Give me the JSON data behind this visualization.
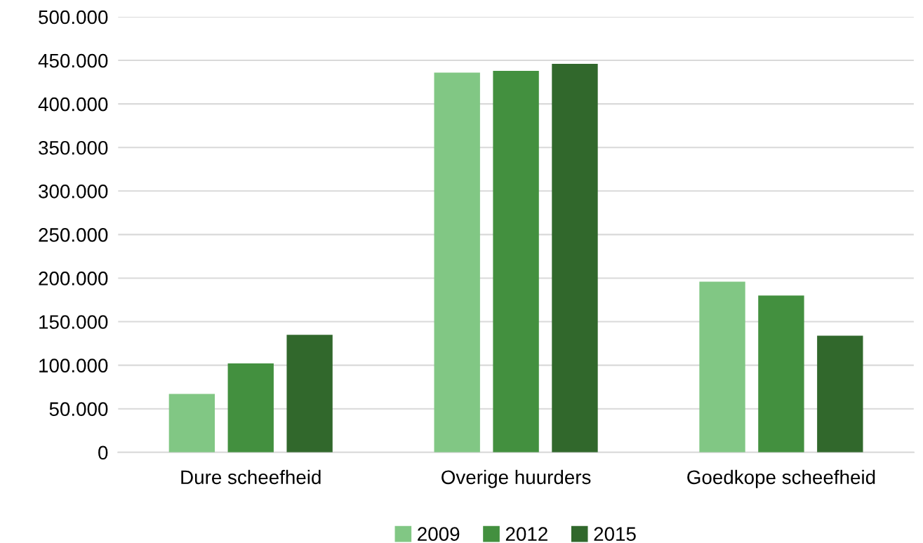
{
  "chart_data": {
    "type": "bar",
    "categories": [
      "Dure scheefheid",
      "Overige huurders",
      "Goedkope scheefheid"
    ],
    "series": [
      {
        "name": "2009",
        "color": "#81c784",
        "values": [
          67000,
          436000,
          196000
        ]
      },
      {
        "name": "2012",
        "color": "#43903f",
        "values": [
          102000,
          438000,
          180000
        ]
      },
      {
        "name": "2015",
        "color": "#31682c",
        "values": [
          135000,
          446000,
          134000
        ]
      }
    ],
    "ylim": [
      0,
      500000
    ],
    "yticks": [
      {
        "value": 0,
        "label": "0"
      },
      {
        "value": 50000,
        "label": "50.000"
      },
      {
        "value": 100000,
        "label": "100.000"
      },
      {
        "value": 150000,
        "label": "150.000"
      },
      {
        "value": 200000,
        "label": "200.000"
      },
      {
        "value": 250000,
        "label": "250.000"
      },
      {
        "value": 300000,
        "label": "300.000"
      },
      {
        "value": 350000,
        "label": "350.000"
      },
      {
        "value": 400000,
        "label": "400.000"
      },
      {
        "value": 450000,
        "label": "450.000"
      },
      {
        "value": 500000,
        "label": "500.000"
      }
    ],
    "grid": "y",
    "legend": "bottom"
  }
}
